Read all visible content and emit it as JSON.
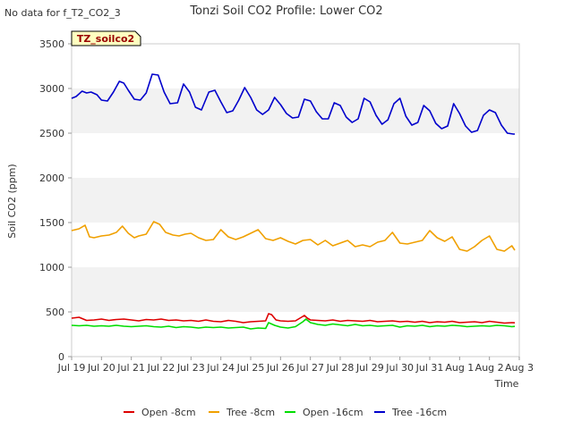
{
  "chart_data": {
    "type": "line",
    "title": "Tonzi Soil CO2 Profile: Lower CO2",
    "no_data_note": "No data for f_T2_CO2_3",
    "tag_label": "TZ_soilco2",
    "xlabel": "Time",
    "ylabel": "Soil CO2 (ppm)",
    "xlim": [
      0,
      15
    ],
    "ylim": [
      0,
      3500
    ],
    "x_ticks": [
      0,
      1,
      2,
      3,
      4,
      5,
      6,
      7,
      8,
      9,
      10,
      11,
      12,
      13,
      14,
      15
    ],
    "x_tick_labels": [
      "Jul 19",
      "Jul 20",
      "Jul 21",
      "Jul 22",
      "Jul 23",
      "Jul 24",
      "Jul 25",
      "Jul 26",
      "Jul 27",
      "Jul 28",
      "Jul 29",
      "Jul 30",
      "Jul 31",
      "Aug 1",
      "Aug 2",
      "Aug 3"
    ],
    "y_ticks": [
      0,
      500,
      1000,
      1500,
      2000,
      2500,
      3000,
      3500
    ],
    "y_tick_labels": [
      "0",
      "500",
      "1000",
      "1500",
      "2000",
      "2500",
      "3000",
      "3500"
    ],
    "legend_position": "bottom",
    "series": [
      {
        "name": "Open -8cm",
        "color": "#dd0000",
        "x": [
          0.0,
          0.25,
          0.5,
          0.75,
          1.0,
          1.25,
          1.5,
          1.75,
          2.0,
          2.25,
          2.5,
          2.75,
          3.0,
          3.25,
          3.5,
          3.75,
          4.0,
          4.25,
          4.5,
          4.75,
          5.0,
          5.25,
          5.5,
          5.75,
          6.0,
          6.25,
          6.5,
          6.6,
          6.7,
          6.85,
          7.0,
          7.25,
          7.5,
          7.75,
          7.8,
          7.9,
          8.0,
          8.25,
          8.5,
          8.75,
          9.0,
          9.25,
          9.5,
          9.75,
          10.0,
          10.25,
          10.5,
          10.75,
          11.0,
          11.25,
          11.5,
          11.75,
          12.0,
          12.25,
          12.5,
          12.75,
          13.0,
          13.25,
          13.5,
          13.75,
          14.0,
          14.25,
          14.5,
          14.75,
          14.85
        ],
        "values": [
          430,
          440,
          405,
          410,
          420,
          405,
          415,
          420,
          410,
          400,
          415,
          410,
          420,
          405,
          410,
          400,
          405,
          395,
          410,
          395,
          390,
          405,
          395,
          380,
          390,
          395,
          400,
          480,
          470,
          410,
          400,
          395,
          400,
          450,
          460,
          430,
          410,
          405,
          400,
          410,
          395,
          405,
          400,
          395,
          405,
          390,
          395,
          400,
          390,
          395,
          385,
          395,
          380,
          390,
          385,
          395,
          380,
          385,
          390,
          380,
          395,
          385,
          375,
          380,
          378
        ]
      },
      {
        "name": "Tree -8cm",
        "color": "#f0a000",
        "x": [
          0.0,
          0.25,
          0.45,
          0.6,
          0.75,
          1.0,
          1.25,
          1.5,
          1.7,
          1.9,
          2.1,
          2.25,
          2.5,
          2.75,
          2.95,
          3.15,
          3.4,
          3.6,
          3.8,
          4.0,
          4.25,
          4.5,
          4.75,
          5.0,
          5.25,
          5.5,
          5.75,
          6.0,
          6.25,
          6.5,
          6.75,
          7.0,
          7.25,
          7.5,
          7.75,
          8.0,
          8.25,
          8.5,
          8.75,
          9.0,
          9.25,
          9.5,
          9.75,
          10.0,
          10.25,
          10.5,
          10.75,
          11.0,
          11.25,
          11.5,
          11.75,
          12.0,
          12.25,
          12.5,
          12.75,
          13.0,
          13.25,
          13.5,
          13.75,
          14.0,
          14.25,
          14.5,
          14.75,
          14.85
        ],
        "values": [
          1410,
          1430,
          1470,
          1340,
          1330,
          1350,
          1360,
          1390,
          1460,
          1380,
          1330,
          1350,
          1370,
          1510,
          1480,
          1390,
          1360,
          1350,
          1370,
          1380,
          1330,
          1300,
          1310,
          1420,
          1340,
          1310,
          1340,
          1380,
          1420,
          1320,
          1300,
          1330,
          1290,
          1260,
          1300,
          1310,
          1250,
          1300,
          1240,
          1270,
          1300,
          1230,
          1250,
          1230,
          1280,
          1300,
          1390,
          1270,
          1260,
          1280,
          1300,
          1410,
          1330,
          1290,
          1340,
          1200,
          1180,
          1230,
          1300,
          1350,
          1200,
          1180,
          1240,
          1190
        ]
      },
      {
        "name": "Open -16cm",
        "color": "#00dd00",
        "x": [
          0.0,
          0.25,
          0.5,
          0.75,
          1.0,
          1.25,
          1.5,
          1.75,
          2.0,
          2.25,
          2.5,
          2.75,
          3.0,
          3.25,
          3.5,
          3.75,
          4.0,
          4.25,
          4.5,
          4.75,
          5.0,
          5.25,
          5.5,
          5.75,
          6.0,
          6.25,
          6.5,
          6.6,
          6.8,
          7.0,
          7.25,
          7.5,
          7.75,
          7.85,
          8.0,
          8.25,
          8.5,
          8.75,
          9.0,
          9.25,
          9.5,
          9.75,
          10.0,
          10.25,
          10.5,
          10.75,
          11.0,
          11.25,
          11.5,
          11.75,
          12.0,
          12.25,
          12.5,
          12.75,
          13.0,
          13.25,
          13.5,
          13.75,
          14.0,
          14.25,
          14.5,
          14.75,
          14.85
        ],
        "values": [
          350,
          345,
          350,
          340,
          345,
          340,
          350,
          340,
          335,
          340,
          345,
          335,
          330,
          340,
          325,
          335,
          330,
          320,
          330,
          325,
          330,
          320,
          325,
          330,
          310,
          320,
          315,
          380,
          350,
          330,
          320,
          335,
          390,
          420,
          380,
          360,
          350,
          365,
          355,
          345,
          360,
          345,
          350,
          340,
          345,
          350,
          330,
          345,
          340,
          350,
          335,
          345,
          340,
          350,
          345,
          335,
          340,
          345,
          340,
          350,
          345,
          335,
          338
        ]
      },
      {
        "name": "Tree -16cm",
        "color": "#0000cc",
        "x": [
          0.0,
          0.15,
          0.35,
          0.5,
          0.65,
          0.85,
          1.0,
          1.2,
          1.4,
          1.6,
          1.75,
          1.9,
          2.1,
          2.3,
          2.5,
          2.7,
          2.9,
          3.1,
          3.3,
          3.55,
          3.75,
          3.95,
          4.15,
          4.35,
          4.6,
          4.8,
          5.0,
          5.2,
          5.4,
          5.6,
          5.8,
          6.0,
          6.2,
          6.4,
          6.6,
          6.8,
          7.0,
          7.2,
          7.4,
          7.6,
          7.8,
          8.0,
          8.2,
          8.4,
          8.6,
          8.8,
          9.0,
          9.2,
          9.4,
          9.6,
          9.8,
          10.0,
          10.2,
          10.4,
          10.6,
          10.8,
          11.0,
          11.2,
          11.4,
          11.6,
          11.8,
          12.0,
          12.2,
          12.4,
          12.6,
          12.8,
          13.0,
          13.2,
          13.4,
          13.6,
          13.8,
          14.0,
          14.2,
          14.4,
          14.6,
          14.8,
          14.85
        ],
        "values": [
          2890,
          2910,
          2970,
          2950,
          2960,
          2930,
          2870,
          2860,
          2960,
          3080,
          3060,
          2980,
          2880,
          2870,
          2950,
          3160,
          3150,
          2960,
          2830,
          2840,
          3050,
          2960,
          2790,
          2760,
          2960,
          2980,
          2850,
          2730,
          2750,
          2870,
          3010,
          2900,
          2760,
          2710,
          2760,
          2900,
          2820,
          2720,
          2670,
          2680,
          2880,
          2860,
          2740,
          2660,
          2660,
          2840,
          2810,
          2680,
          2620,
          2660,
          2890,
          2850,
          2700,
          2600,
          2650,
          2830,
          2890,
          2690,
          2590,
          2620,
          2810,
          2750,
          2610,
          2550,
          2580,
          2830,
          2720,
          2580,
          2510,
          2530,
          2700,
          2760,
          2730,
          2590,
          2500,
          2490,
          2490
        ]
      }
    ]
  }
}
